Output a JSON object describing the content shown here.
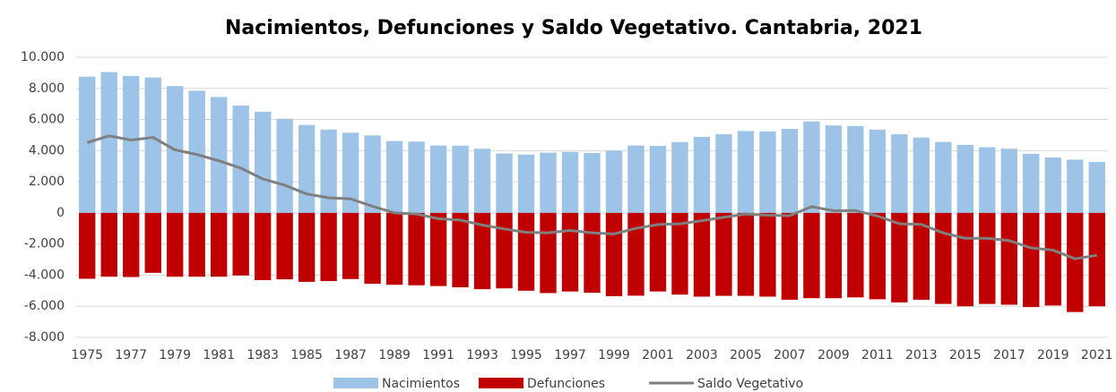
{
  "chart_data": {
    "type": "bar_line",
    "title": "Nacimientos, Defunciones y Saldo Vegetativo. Cantabria, 2021",
    "categories": [
      "1975",
      null,
      "1977",
      null,
      "1979",
      null,
      "1981",
      null,
      "1983",
      null,
      "1985",
      null,
      "1987",
      null,
      "1989",
      null,
      "1991",
      null,
      "1993",
      null,
      "1995",
      null,
      "1997",
      null,
      "1999",
      null,
      "2001",
      null,
      "2003",
      null,
      "2005",
      null,
      "2007",
      null,
      "2009",
      null,
      "2011",
      null,
      "2013",
      null,
      "2015",
      null,
      "2017",
      null,
      "2019",
      null,
      "2021"
    ],
    "series": [
      {
        "name": "Nacimientos",
        "type": "bar",
        "color": "#9dc3e6",
        "values": [
          8750,
          9050,
          8800,
          8700,
          8150,
          7850,
          7450,
          6900,
          6500,
          6050,
          5650,
          5350,
          5150,
          4980,
          4620,
          4580,
          4330,
          4320,
          4120,
          3820,
          3750,
          3870,
          3920,
          3850,
          4000,
          4330,
          4300,
          4550,
          4880,
          5050,
          5260,
          5230,
          5400,
          5880,
          5620,
          5580,
          5350,
          5050,
          4840,
          4560,
          4370,
          4220,
          4120,
          3800,
          3560,
          3420,
          3280
        ]
      },
      {
        "name": "Defunciones",
        "type": "bar",
        "color": "#c00000",
        "values": [
          -4230,
          -4100,
          -4120,
          -3850,
          -4100,
          -4100,
          -4100,
          -4020,
          -4320,
          -4270,
          -4430,
          -4380,
          -4250,
          -4550,
          -4620,
          -4650,
          -4700,
          -4780,
          -4900,
          -4850,
          -5000,
          -5150,
          -5050,
          -5130,
          -5350,
          -5320,
          -5050,
          -5250,
          -5380,
          -5330,
          -5330,
          -5380,
          -5580,
          -5480,
          -5480,
          -5430,
          -5550,
          -5750,
          -5580,
          -5850,
          -6000,
          -5850,
          -5900,
          -6050,
          -5950,
          -6370,
          -6000
        ]
      },
      {
        "name": "Saldo Vegetativo",
        "type": "line",
        "color": "#7f7f7f",
        "values": [
          4520,
          4950,
          4680,
          4850,
          4050,
          3750,
          3350,
          2880,
          2180,
          1780,
          1220,
          970,
          900,
          430,
          0,
          -70,
          -370,
          -460,
          -780,
          -1030,
          -1250,
          -1280,
          -1130,
          -1280,
          -1350,
          -990,
          -750,
          -700,
          -500,
          -280,
          -70,
          -150,
          -180,
          400,
          140,
          150,
          -200,
          -700,
          -740,
          -1290,
          -1630,
          -1630,
          -1780,
          -2250,
          -2390,
          -2950,
          -2720
        ]
      }
    ],
    "ylim": [
      -8000,
      10000
    ],
    "yticks": [
      {
        "value": -8000,
        "label": "-8.000"
      },
      {
        "value": -6000,
        "label": "-6.000"
      },
      {
        "value": -4000,
        "label": "-4.000"
      },
      {
        "value": -2000,
        "label": "-2.000"
      },
      0,
      {
        "value": 2000,
        "label": "2.000"
      },
      {
        "value": 4000,
        "label": "4.000"
      },
      {
        "value": 6000,
        "label": "6.000"
      },
      {
        "value": 8000,
        "label": "8.000"
      },
      {
        "value": 10000,
        "label": "10.000"
      }
    ],
    "grid": true,
    "legend": "bottom"
  }
}
